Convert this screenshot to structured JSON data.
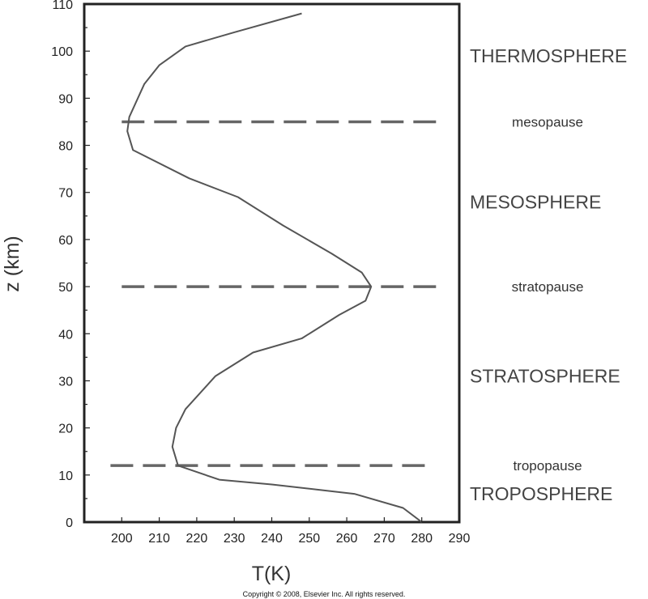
{
  "chart_data": {
    "type": "line",
    "xlabel": "T(K)",
    "ylabel": "z (km)",
    "xlim": [
      190,
      290
    ],
    "ylim": [
      0,
      110
    ],
    "x_ticks": [
      200,
      210,
      220,
      230,
      240,
      250,
      260,
      270,
      280,
      290
    ],
    "y_ticks": [
      0,
      10,
      20,
      30,
      40,
      50,
      60,
      70,
      80,
      90,
      100,
      110
    ],
    "grid": false,
    "series": [
      {
        "x": [
          280,
          275,
          262,
          240,
          226,
          215,
          213.5,
          214.5,
          217,
          225,
          235,
          248,
          258,
          265,
          266.5,
          264,
          256,
          243,
          231,
          218,
          203,
          201.5,
          202,
          206,
          210,
          217,
          230,
          248
        ],
        "y": [
          0,
          3,
          6,
          8,
          9,
          12,
          16,
          20,
          24,
          31,
          36,
          39,
          44,
          47,
          50,
          53,
          57,
          63,
          69,
          73,
          79,
          83,
          86,
          93,
          97,
          101,
          104,
          108
        ]
      }
    ],
    "reference_lines": [
      {
        "label": "tropopause",
        "z": 12,
        "x_range": [
          197,
          282
        ]
      },
      {
        "label": "stratopause",
        "z": 50,
        "x_range": [
          200,
          285
        ]
      },
      {
        "label": "mesopause",
        "z": 85,
        "x_range": [
          200,
          285
        ]
      }
    ],
    "layers": [
      {
        "label": "TROPOSPHERE",
        "z": 6
      },
      {
        "label": "STRATOSPHERE",
        "z": 31
      },
      {
        "label": "MESOSPHERE",
        "z": 68
      },
      {
        "label": "THERMOSPHERE",
        "z": 99
      }
    ],
    "colors": {
      "line": "#555555",
      "dashes": "#666666",
      "frame": "#222222"
    }
  },
  "copyright": "Copyright © 2008, Elsevier Inc. All rights reserved."
}
